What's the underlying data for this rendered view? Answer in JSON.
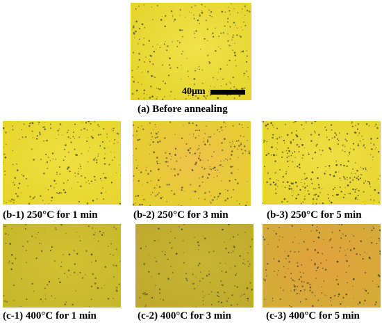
{
  "figure": {
    "panels": [
      {
        "id": "a",
        "caption": "(a) Before annealing",
        "base_color": "#e4d42a",
        "highlight_color": "#f0e24a",
        "dot_color": "#5c5a3a"
      },
      {
        "id": "b1",
        "caption": "(b-1)  250°C for 1 min",
        "base_color": "#e6d52c",
        "highlight_color": "#efe040",
        "dot_color": "#5a5838"
      },
      {
        "id": "b2",
        "caption": "(b-2) 250°C for 3 min",
        "base_color": "#e6cf2c",
        "highlight_color": "#eec24a",
        "dot_color": "#5a5838"
      },
      {
        "id": "b3",
        "caption": "(b-3) 250°C for 5 min",
        "base_color": "#e6d52e",
        "highlight_color": "#efdf44",
        "dot_color": "#4e4c34"
      },
      {
        "id": "c1",
        "caption": "(c-1)  400°C for 1 min",
        "base_color": "#c6b62a",
        "highlight_color": "#d2c232",
        "dot_color": "#5c5634"
      },
      {
        "id": "c2",
        "caption": "(c-2) 400°C for 3 min",
        "base_color": "#bdaa2c",
        "highlight_color": "#c9b534",
        "dot_color": "#56502e"
      },
      {
        "id": "c3",
        "caption": "(c-3) 400°C for 5 min",
        "base_color": "#d2ad36",
        "highlight_color": "#e2a23e",
        "dot_color": "#4c4632"
      }
    ],
    "scale_bar": {
      "label": "40μm"
    }
  }
}
